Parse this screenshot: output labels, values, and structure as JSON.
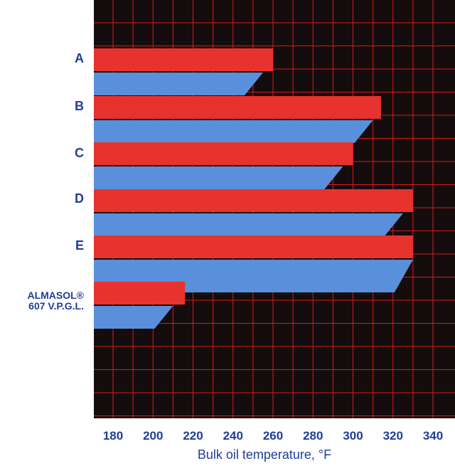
{
  "chart_data": {
    "type": "bar",
    "title": "",
    "xlabel": "Bulk oil temperature, °F",
    "ylabel": "",
    "xlim": [
      170,
      345
    ],
    "xticks": [
      180,
      200,
      220,
      240,
      260,
      280,
      300,
      320,
      340
    ],
    "grid": true,
    "legend": "none",
    "categories": [
      {
        "label": "A",
        "label_lines": [
          "A"
        ]
      },
      {
        "label": "B",
        "label_lines": [
          "B"
        ]
      },
      {
        "label": "C",
        "label_lines": [
          "C"
        ]
      },
      {
        "label": "D",
        "label_lines": [
          "D"
        ]
      },
      {
        "label": "E",
        "label_lines": [
          "E"
        ]
      },
      {
        "label": "ALMASOL® 607 V.P.G.L.",
        "label_lines": [
          "ALMASOL®",
          "607 V.P.G.L."
        ]
      }
    ],
    "series": [
      {
        "color": "#e8322e",
        "values": [
          260,
          314,
          300,
          330,
          330,
          216
        ]
      },
      {
        "color": "#5a8fdc",
        "values": [
          255,
          310,
          295,
          325,
          330,
          210
        ]
      }
    ],
    "colors": {
      "background": "#150d0d",
      "grid": "#d61a1a",
      "text": "#1f3e9a"
    }
  }
}
